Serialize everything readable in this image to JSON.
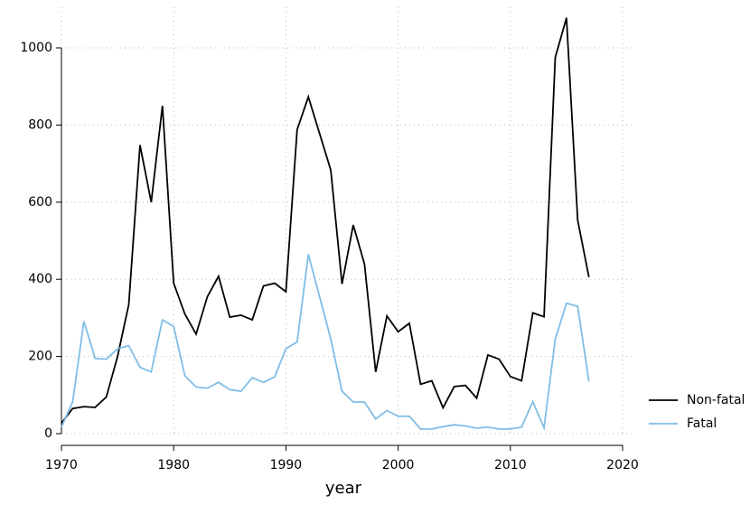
{
  "chart_data": {
    "type": "line",
    "x_label": "year",
    "x": [
      1970,
      1971,
      1972,
      1973,
      1974,
      1975,
      1976,
      1977,
      1978,
      1979,
      1980,
      1981,
      1982,
      1983,
      1984,
      1985,
      1986,
      1987,
      1988,
      1989,
      1990,
      1991,
      1992,
      1993,
      1994,
      1995,
      1996,
      1997,
      1998,
      1999,
      2000,
      2001,
      2002,
      2003,
      2004,
      2005,
      2006,
      2007,
      2008,
      2009,
      2010,
      2011,
      2012,
      2013,
      2014,
      2015,
      2016,
      2017
    ],
    "series": [
      {
        "name": "Non-fatal",
        "color": "#000000",
        "values": [
          27,
          65,
          70,
          68,
          95,
          200,
          335,
          748,
          600,
          850,
          390,
          310,
          258,
          355,
          408,
          302,
          307,
          295,
          383,
          390,
          368,
          788,
          873,
          778,
          683,
          388,
          541,
          440,
          160,
          305,
          264,
          286,
          128,
          137,
          67,
          122,
          125,
          92,
          204,
          193,
          148,
          137,
          313,
          303,
          975,
          1078,
          553,
          406
        ]
      },
      {
        "name": "Fatal",
        "color": "#7fbde6",
        "values": [
          17,
          82,
          291,
          195,
          193,
          220,
          228,
          172,
          160,
          295,
          278,
          150,
          121,
          118,
          133,
          114,
          110,
          145,
          133,
          147,
          220,
          238,
          465,
          355,
          245,
          110,
          82,
          82,
          38,
          60,
          45,
          45,
          12,
          12,
          18,
          23,
          20,
          14,
          17,
          12,
          12,
          17,
          83,
          15,
          245,
          338,
          330,
          135
        ]
      }
    ],
    "xlim": [
      1970,
      2020
    ],
    "xticks": [
      1970,
      1980,
      1990,
      2000,
      2010,
      2020
    ],
    "ylim": [
      0,
      1000
    ],
    "yticks": [
      0,
      200,
      400,
      600,
      800,
      1000
    ],
    "grid": true,
    "legend": "bottom-right"
  }
}
